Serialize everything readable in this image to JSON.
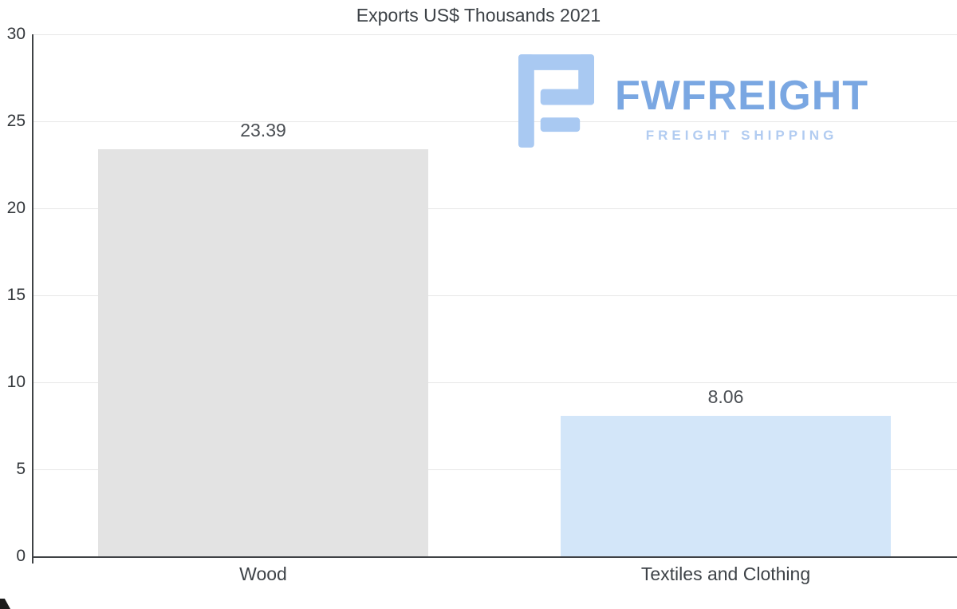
{
  "chart_data": {
    "type": "bar",
    "title": "Exports US$ Thousands 2021",
    "categories": [
      "Wood",
      "Textiles and Clothing"
    ],
    "values": [
      23.39,
      8.06
    ],
    "value_labels": [
      "23.39",
      "8.06"
    ],
    "bar_colors": [
      "#e3e3e3",
      "#d3e6f9"
    ],
    "ylim": [
      0,
      30
    ],
    "yticks": [
      0,
      5,
      10,
      15,
      20,
      25,
      30
    ],
    "grid": true,
    "legend_position": "none",
    "xlabel": "",
    "ylabel": ""
  },
  "watermark": {
    "brand": "FWFREIGHT",
    "tagline": "FREIGHT SHIPPING",
    "brand_color": "#7aa7e2",
    "tagline_color": "#b2ccf1",
    "icon_color": "#a9c9f2"
  }
}
